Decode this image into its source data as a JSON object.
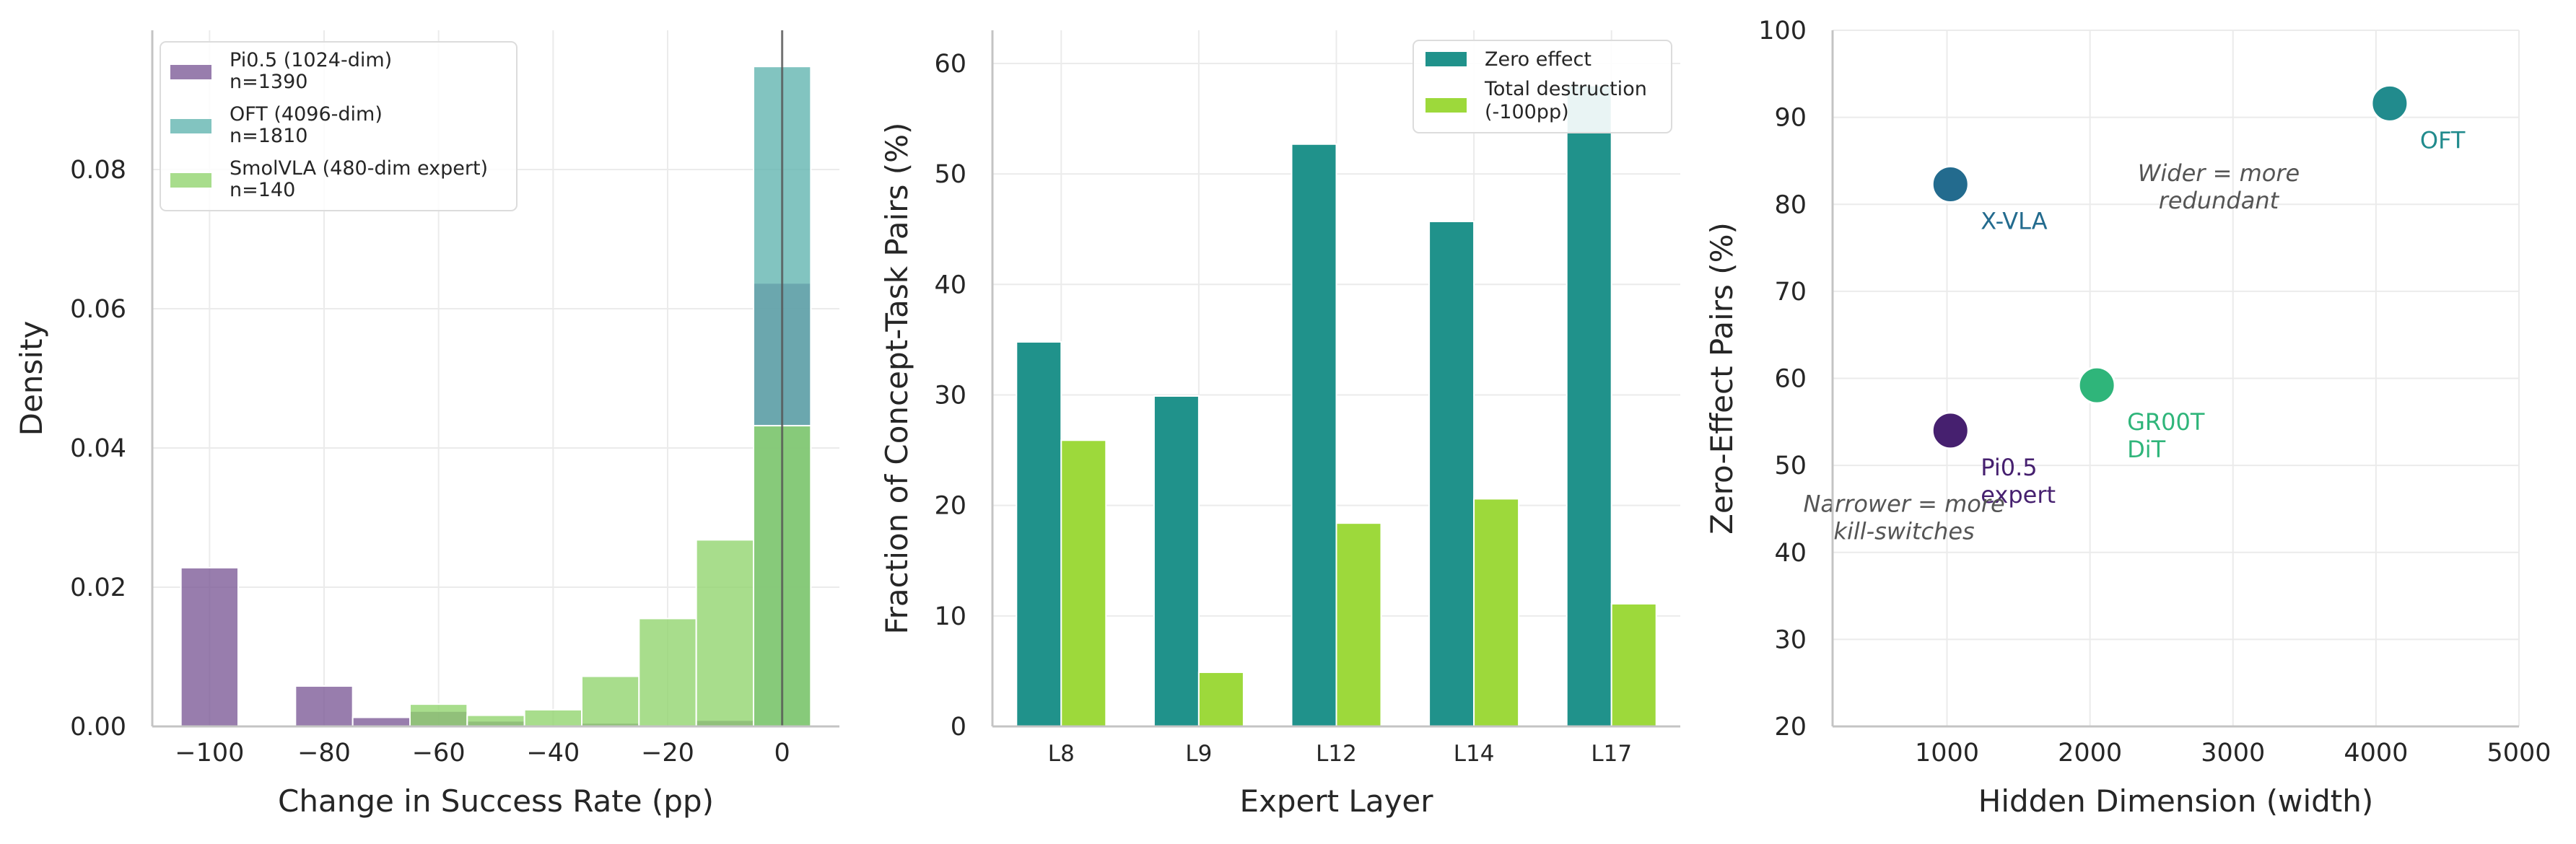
{
  "chart_data": [
    {
      "type": "histogram",
      "xlabel": "Change in Success Rate (pp)",
      "ylabel": "Density",
      "xlim": [
        -110,
        10
      ],
      "ylim": [
        0,
        0.1
      ],
      "xticks": [
        -100,
        -80,
        -60,
        -40,
        -20,
        0
      ],
      "xtick_labels": [
        "−100",
        "−80",
        "−60",
        "−40",
        "−20",
        "0"
      ],
      "yticks": [
        0.0,
        0.02,
        0.04,
        0.06,
        0.08
      ],
      "ytick_labels": [
        "0.00",
        "0.02",
        "0.04",
        "0.06",
        "0.08"
      ],
      "vline_x": 0,
      "series": [
        {
          "name": "Pi0.5 (1024-dim)",
          "n_label": "n=1390",
          "color": "#7b5896",
          "bins": [
            {
              "x0": -105,
              "x1": -95,
              "density": 0.0228
            },
            {
              "x0": -85,
              "x1": -75,
              "density": 0.0058
            },
            {
              "x0": -75,
              "x1": -65,
              "density": 0.0013
            },
            {
              "x0": -65,
              "x1": -55,
              "density": 0.0022
            },
            {
              "x0": -55,
              "x1": -45,
              "density": 0.0008
            },
            {
              "x0": -35,
              "x1": -25,
              "density": 0.0005
            },
            {
              "x0": -15,
              "x1": -5,
              "density": 0.0009
            },
            {
              "x0": -5,
              "x1": 5,
              "density": 0.0637
            }
          ]
        },
        {
          "name": "OFT (4096-dim)",
          "n_label": "n=1810",
          "color": "#5fb3ae",
          "bins": [
            {
              "x0": -5,
              "x1": 5,
              "density": 0.0948
            }
          ]
        },
        {
          "name": "SmolVLA (480-dim expert)",
          "n_label": "n=140",
          "color": "#8fd36b",
          "bins": [
            {
              "x0": -65,
              "x1": -55,
              "density": 0.0032
            },
            {
              "x0": -55,
              "x1": -45,
              "density": 0.0016
            },
            {
              "x0": -45,
              "x1": -35,
              "density": 0.0024
            },
            {
              "x0": -35,
              "x1": -25,
              "density": 0.0072
            },
            {
              "x0": -25,
              "x1": -15,
              "density": 0.0155
            },
            {
              "x0": -15,
              "x1": -5,
              "density": 0.0268
            },
            {
              "x0": -5,
              "x1": 5,
              "density": 0.0432
            }
          ]
        }
      ]
    },
    {
      "type": "bar",
      "xlabel": "Expert Layer",
      "ylabel": "Fraction of Concept-Task Pairs (%)",
      "ylim": [
        0,
        63
      ],
      "yticks": [
        0,
        10,
        20,
        30,
        40,
        50,
        60
      ],
      "categories": [
        "L8",
        "L9",
        "L12",
        "L14",
        "L17"
      ],
      "series": [
        {
          "name": "Zero effect",
          "color": "#20928b",
          "values": [
            34.8,
            29.9,
            52.7,
            45.7,
            58.0
          ]
        },
        {
          "name": "Total destruction",
          "name_line2": "(-100pp)",
          "color": "#9dd93b",
          "values": [
            25.9,
            4.9,
            18.4,
            20.6,
            11.1
          ]
        }
      ]
    },
    {
      "type": "scatter",
      "xlabel": "Hidden Dimension (width)",
      "ylabel": "Zero-Effect Pairs (%)",
      "xlim": [
        200,
        5000
      ],
      "ylim": [
        20,
        100
      ],
      "xticks": [
        1000,
        2000,
        3000,
        4000,
        5000
      ],
      "yticks": [
        20,
        30,
        40,
        50,
        60,
        70,
        80,
        90,
        100
      ],
      "points": [
        {
          "label": "OFT",
          "label_line2": "",
          "x": 4096,
          "y": 91.6,
          "color": "#218b8d"
        },
        {
          "label": "X-VLA",
          "label_line2": "",
          "x": 1024,
          "y": 82.3,
          "color": "#236b8e"
        },
        {
          "label": "GR00T",
          "label_line2": "DiT",
          "x": 2048,
          "y": 59.2,
          "color": "#2fb57a"
        },
        {
          "label": "Pi0.5",
          "label_line2": "expert",
          "x": 1024,
          "y": 54.0,
          "color": "#46206f"
        }
      ],
      "annotations": [
        {
          "line1": "Wider = more",
          "line2": "redundant",
          "x": 2900,
          "y": 82
        },
        {
          "line1": "Narrower = more",
          "line2": "kill-switches",
          "x": 700,
          "y": 44
        }
      ]
    }
  ]
}
